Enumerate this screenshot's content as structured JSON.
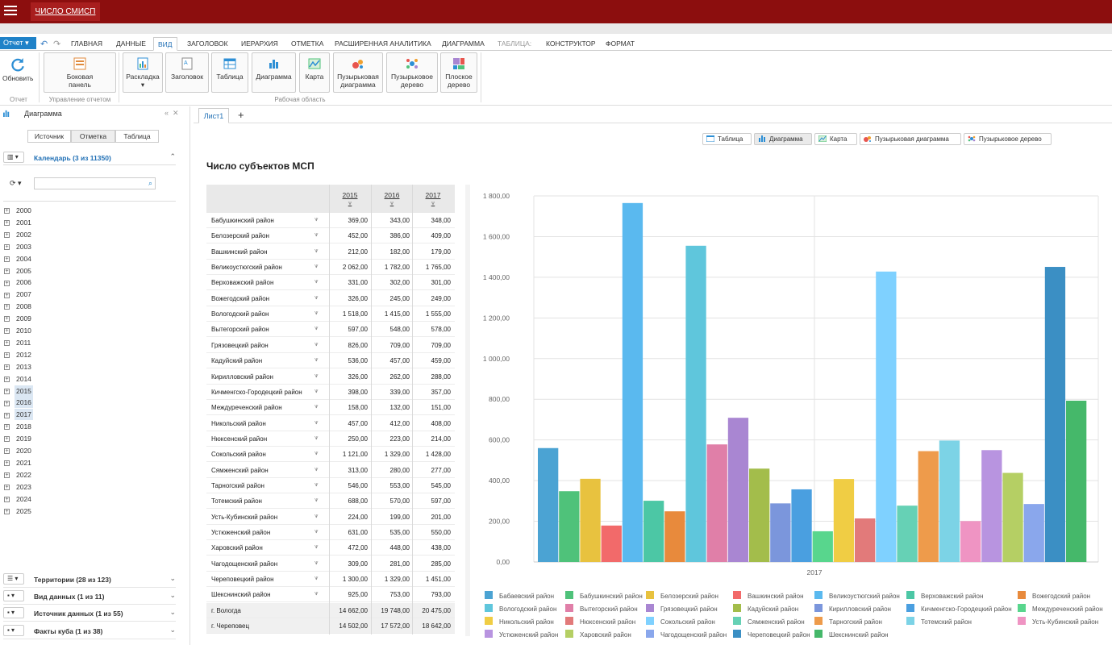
{
  "app": {
    "title": "ЧИСЛО СМИСП"
  },
  "ribbon": {
    "report_label": "Отчет",
    "tabs": [
      "ГЛАВНАЯ",
      "ДАННЫЕ",
      "ВИД",
      "ЗАГОЛОВОК",
      "ИЕРАРХИЯ",
      "ОТМЕТКА",
      "РАСШИРЕННАЯ АНАЛИТИКА",
      "ДИАГРАММА",
      "ТАБЛИЦА:",
      "КОНСТРУКТОР",
      "ФОРМАТ"
    ],
    "active_tab": "ВИД",
    "buttons": {
      "refresh": "Обновить",
      "sidebar_1": "Боковая",
      "sidebar_2": "панель",
      "layout": "Раскладка",
      "header": "Заголовок",
      "table": "Таблица",
      "chart": "Диаграмма",
      "map": "Карта",
      "bubble_1": "Пузырьковая",
      "bubble_2": "диаграмма",
      "tree_1": "Пузырьковое",
      "tree_2": "дерево",
      "flat_1": "Плоское",
      "flat_2": "дерево"
    },
    "groups": {
      "report": "Отчет",
      "manage": "Управление отчетом",
      "workspace": "Рабочая область"
    }
  },
  "left_panel": {
    "title": "Диаграмма",
    "subtabs": [
      "Источник",
      "Отметка",
      "Таблица"
    ],
    "calendar": "Календарь (3 из 11350)",
    "years": [
      "2000",
      "2001",
      "2002",
      "2003",
      "2004",
      "2005",
      "2006",
      "2007",
      "2008",
      "2009",
      "2010",
      "2011",
      "2012",
      "2013",
      "2014",
      "2015",
      "2016",
      "2017",
      "2018",
      "2019",
      "2020",
      "2021",
      "2022",
      "2023",
      "2024",
      "2025"
    ],
    "selected_years": [
      "2015",
      "2016",
      "2017"
    ],
    "dims": [
      {
        "label": "Территории (28 из 123)"
      },
      {
        "label": "Вид данных (1 из 11)"
      },
      {
        "label": "Источник данных (1 из 55)"
      },
      {
        "label": "Факты куба (1 из 38)"
      }
    ]
  },
  "sheet": {
    "tab": "Лист1",
    "add": "+"
  },
  "view_buttons": [
    "Таблица",
    "Диаграмма",
    "Карта",
    "Пузырьковая диаграмма",
    "Пузырьковое дерево"
  ],
  "report_title": "Число субъектов МСП",
  "grid": {
    "years": [
      "2015",
      "2016",
      "2017"
    ],
    "rows": [
      {
        "name": "Бабушкинский район",
        "v": [
          "369,00",
          "343,00",
          "348,00"
        ]
      },
      {
        "name": "Белозерский район",
        "v": [
          "452,00",
          "386,00",
          "409,00"
        ]
      },
      {
        "name": "Вашкинский район",
        "v": [
          "212,00",
          "182,00",
          "179,00"
        ]
      },
      {
        "name": "Великоустюгский район",
        "v": [
          "2 062,00",
          "1 782,00",
          "1 765,00"
        ]
      },
      {
        "name": "Верховажский район",
        "v": [
          "331,00",
          "302,00",
          "301,00"
        ]
      },
      {
        "name": "Вожегодский район",
        "v": [
          "326,00",
          "245,00",
          "249,00"
        ]
      },
      {
        "name": "Вологодский район",
        "v": [
          "1 518,00",
          "1 415,00",
          "1 555,00"
        ]
      },
      {
        "name": "Вытегорский район",
        "v": [
          "597,00",
          "548,00",
          "578,00"
        ]
      },
      {
        "name": "Грязовецкий район",
        "v": [
          "826,00",
          "709,00",
          "709,00"
        ]
      },
      {
        "name": "Кадуйский район",
        "v": [
          "536,00",
          "457,00",
          "459,00"
        ]
      },
      {
        "name": "Кирилловский район",
        "v": [
          "326,00",
          "262,00",
          "288,00"
        ]
      },
      {
        "name": "Кичменгско-Городецкий район",
        "v": [
          "398,00",
          "339,00",
          "357,00"
        ]
      },
      {
        "name": "Междуреченский район",
        "v": [
          "158,00",
          "132,00",
          "151,00"
        ]
      },
      {
        "name": "Никольский район",
        "v": [
          "457,00",
          "412,00",
          "408,00"
        ]
      },
      {
        "name": "Нюксенский район",
        "v": [
          "250,00",
          "223,00",
          "214,00"
        ]
      },
      {
        "name": "Сокольский район",
        "v": [
          "1 121,00",
          "1 329,00",
          "1 428,00"
        ]
      },
      {
        "name": "Сямженский район",
        "v": [
          "313,00",
          "280,00",
          "277,00"
        ]
      },
      {
        "name": "Тарногский район",
        "v": [
          "546,00",
          "553,00",
          "545,00"
        ]
      },
      {
        "name": "Тотемский район",
        "v": [
          "688,00",
          "570,00",
          "597,00"
        ]
      },
      {
        "name": "Усть-Кубинский район",
        "v": [
          "224,00",
          "199,00",
          "201,00"
        ]
      },
      {
        "name": "Устюженский район",
        "v": [
          "631,00",
          "535,00",
          "550,00"
        ]
      },
      {
        "name": "Харовский район",
        "v": [
          "472,00",
          "448,00",
          "438,00"
        ]
      },
      {
        "name": "Чагодощенский район",
        "v": [
          "309,00",
          "281,00",
          "285,00"
        ]
      },
      {
        "name": "Череповецкий район",
        "v": [
          "1 300,00",
          "1 329,00",
          "1 451,00"
        ]
      },
      {
        "name": "Шекснинский район",
        "v": [
          "925,00",
          "753,00",
          "793,00"
        ]
      },
      {
        "name": "г. Вологда",
        "v": [
          "14 662,00",
          "19 748,00",
          "20 475,00"
        ]
      },
      {
        "name": "г. Череповец",
        "v": [
          "14 502,00",
          "17 572,00",
          "18 642,00"
        ]
      }
    ]
  },
  "chart_data": {
    "type": "bar",
    "categories": [
      "2017"
    ],
    "ylim": [
      0,
      1800
    ],
    "yticks": [
      "0,00",
      "200,00",
      "400,00",
      "600,00",
      "800,00",
      "1 000,00",
      "1 200,00",
      "1 400,00",
      "1 600,00",
      "1 800,00"
    ],
    "grid": true,
    "legend_position": "bottom",
    "series": [
      {
        "name": "Бабаевский район",
        "value": 560,
        "color": "#4ba3d3"
      },
      {
        "name": "Бабушкинский район",
        "value": 348,
        "color": "#4fc27a"
      },
      {
        "name": "Белозерский район",
        "value": 409,
        "color": "#e8c23f"
      },
      {
        "name": "Вашкинский район",
        "value": 179,
        "color": "#f26a6a"
      },
      {
        "name": "Великоустюгский район",
        "value": 1765,
        "color": "#5ab9ef"
      },
      {
        "name": "Верховажский район",
        "value": 301,
        "color": "#4cc7a5"
      },
      {
        "name": "Вожегодский район",
        "value": 249,
        "color": "#e88a3c"
      },
      {
        "name": "Вологодский район",
        "value": 1555,
        "color": "#5fc6dc"
      },
      {
        "name": "Вытегорский район",
        "value": 578,
        "color": "#e07fa8"
      },
      {
        "name": "Грязовецкий район",
        "value": 709,
        "color": "#a986d2"
      },
      {
        "name": "Кадуйский район",
        "value": 459,
        "color": "#a3bd4b"
      },
      {
        "name": "Кирилловский район",
        "value": 288,
        "color": "#7b96dc"
      },
      {
        "name": "Кичменгско-Городецкий район",
        "value": 357,
        "color": "#4a9fe0"
      },
      {
        "name": "Междуреченский район",
        "value": 151,
        "color": "#58d68d"
      },
      {
        "name": "Никольский район",
        "value": 408,
        "color": "#f0cd44"
      },
      {
        "name": "Нюксенский район",
        "value": 214,
        "color": "#e27a7a"
      },
      {
        "name": "Сокольский район",
        "value": 1428,
        "color": "#7fd1ff"
      },
      {
        "name": "Сямженский район",
        "value": 277,
        "color": "#66d1b5"
      },
      {
        "name": "Тарногский район",
        "value": 545,
        "color": "#ee9b4b"
      },
      {
        "name": "Тотемский район",
        "value": 597,
        "color": "#7cd3e6"
      },
      {
        "name": "Усть-Кубинский район",
        "value": 201,
        "color": "#ef94c3"
      },
      {
        "name": "Устюженский район",
        "value": 550,
        "color": "#b894e0"
      },
      {
        "name": "Харовский район",
        "value": 438,
        "color": "#b5cf64"
      },
      {
        "name": "Чагодощенский район",
        "value": 285,
        "color": "#8aa7ec"
      },
      {
        "name": "Череповецкий район",
        "value": 1451,
        "color": "#3b8fc4"
      },
      {
        "name": "Шекснинский район",
        "value": 793,
        "color": "#45b86a"
      }
    ]
  }
}
